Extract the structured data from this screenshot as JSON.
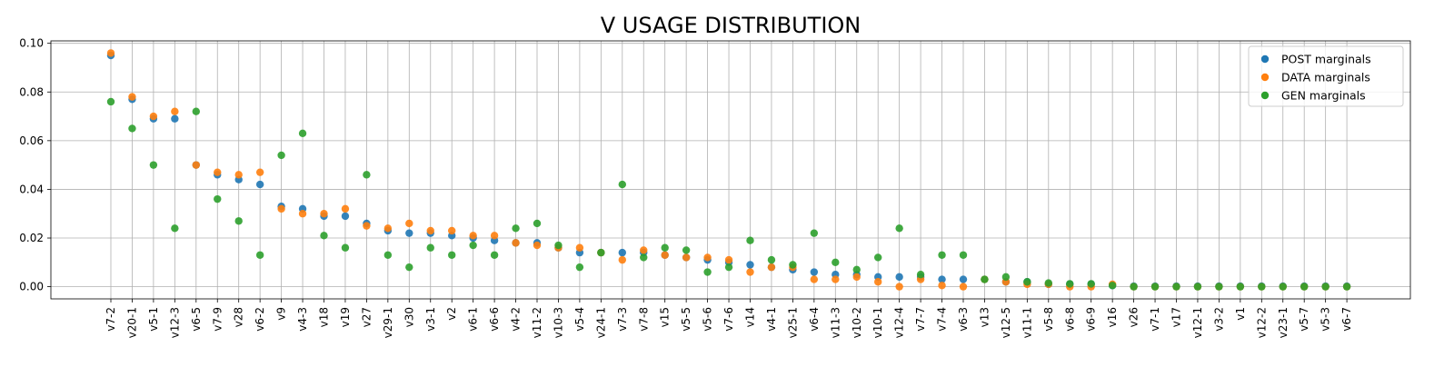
{
  "chart_data": {
    "type": "scatter",
    "title": "V USAGE DISTRIBUTION",
    "xlabel": "",
    "ylabel": "",
    "ylim": [
      -0.005,
      0.101
    ],
    "yticks": [
      "0.00",
      "0.02",
      "0.04",
      "0.06",
      "0.08",
      "0.10"
    ],
    "grid": true,
    "legend_position": "top-right",
    "categories": [
      "v7-2",
      "v20-1",
      "v5-1",
      "v12-3",
      "v6-5",
      "v7-9",
      "v28",
      "v6-2",
      "v9",
      "v4-3",
      "v18",
      "v19",
      "v27",
      "v29-1",
      "v30",
      "v3-1",
      "v2",
      "v6-1",
      "v6-6",
      "v4-2",
      "v11-2",
      "v10-3",
      "v5-4",
      "v24-1",
      "v7-3",
      "v7-8",
      "v15",
      "v5-5",
      "v5-6",
      "v7-6",
      "v14",
      "v4-1",
      "v25-1",
      "v6-4",
      "v11-3",
      "v10-2",
      "v10-1",
      "v12-4",
      "v7-7",
      "v7-4",
      "v6-3",
      "v13",
      "v12-5",
      "v11-1",
      "v5-8",
      "v6-8",
      "v6-9",
      "v16",
      "v26",
      "v7-1",
      "v17",
      "v12-1",
      "v3-2",
      "v1",
      "v12-2",
      "v23-1",
      "v5-7",
      "v5-3",
      "v6-7"
    ],
    "series": [
      {
        "name": "POST marginals",
        "color": "#1f77b4",
        "values": [
          0.095,
          0.077,
          0.069,
          0.069,
          0.05,
          0.046,
          0.044,
          0.042,
          0.033,
          0.032,
          0.029,
          0.029,
          0.026,
          0.023,
          0.022,
          0.022,
          0.021,
          0.02,
          0.019,
          0.018,
          0.018,
          0.016,
          0.014,
          0.014,
          0.014,
          0.014,
          0.013,
          0.012,
          0.011,
          0.01,
          0.009,
          0.008,
          0.007,
          0.006,
          0.005,
          0.005,
          0.004,
          0.004,
          0.004,
          0.003,
          0.003,
          0.003,
          0.002,
          0.002,
          0.001,
          0.001,
          0.001,
          0.0005,
          0.0002,
          0.0002,
          0.0002,
          0.0002,
          0.0002,
          0.0002,
          0.0002,
          0.0002,
          0.0002,
          0.0002,
          0.0002
        ]
      },
      {
        "name": "DATA marginals",
        "color": "#ff7f0e",
        "values": [
          0.096,
          0.078,
          0.07,
          0.072,
          0.05,
          0.047,
          0.046,
          0.047,
          0.032,
          0.03,
          0.03,
          0.032,
          0.025,
          0.024,
          0.026,
          0.023,
          0.023,
          0.021,
          0.021,
          0.018,
          0.017,
          0.016,
          0.016,
          0.014,
          0.011,
          0.015,
          0.013,
          0.012,
          0.012,
          0.011,
          0.006,
          0.008,
          0.008,
          0.003,
          0.003,
          0.004,
          0.002,
          0.0,
          0.003,
          0.0005,
          0.0,
          0.003,
          0.002,
          0.001,
          0.001,
          0.0,
          0.0,
          0.001,
          0.0,
          0.0,
          0.0,
          0.0,
          0.0,
          0.0,
          0.0,
          0.0,
          0.0,
          0.0,
          0.0
        ]
      },
      {
        "name": "GEN marginals",
        "color": "#2ca02c",
        "values": [
          0.076,
          0.065,
          0.05,
          0.024,
          0.072,
          0.036,
          0.027,
          0.013,
          0.054,
          0.063,
          0.021,
          0.016,
          0.046,
          0.013,
          0.008,
          0.016,
          0.013,
          0.017,
          0.013,
          0.024,
          0.026,
          0.017,
          0.008,
          0.014,
          0.042,
          0.012,
          0.016,
          0.015,
          0.006,
          0.008,
          0.019,
          0.011,
          0.009,
          0.022,
          0.01,
          0.007,
          0.012,
          0.024,
          0.005,
          0.013,
          0.013,
          0.003,
          0.004,
          0.002,
          0.0015,
          0.0012,
          0.0012,
          0.0005,
          0.0,
          0.0,
          0.0,
          0.0,
          0.0,
          0.0,
          0.0,
          0.0,
          0.0,
          0.0,
          0.0
        ]
      }
    ]
  }
}
